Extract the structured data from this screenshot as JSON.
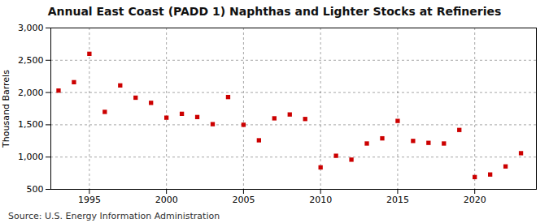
{
  "chart_data": {
    "type": "scatter",
    "title": "Annual East Coast (PADD 1) Naphthas and Lighter Stocks at Refineries",
    "ylabel": "Thousand Barrels",
    "source": "Source: U.S. Energy Information Administration",
    "x": [
      1993,
      1994,
      1995,
      1996,
      1997,
      1998,
      1999,
      2000,
      2001,
      2002,
      2003,
      2004,
      2005,
      2006,
      2007,
      2008,
      2009,
      2010,
      2011,
      2012,
      2013,
      2014,
      2015,
      2016,
      2017,
      2018,
      2019,
      2020,
      2021,
      2022,
      2023
    ],
    "values": [
      2030,
      2160,
      2600,
      1700,
      2110,
      1920,
      1840,
      1610,
      1670,
      1620,
      1510,
      1930,
      1500,
      1260,
      1600,
      1660,
      1590,
      840,
      1020,
      960,
      1210,
      1290,
      1560,
      1250,
      1220,
      1210,
      1420,
      690,
      730,
      855,
      1060
    ],
    "color": "#cc0000",
    "marker": "square",
    "xlim": [
      1992.5,
      2024
    ],
    "xticks": [
      1995,
      2000,
      2005,
      2010,
      2015,
      2020
    ],
    "ylim": [
      500,
      3000
    ],
    "yticks": [
      500,
      {
        "value": 1000,
        "label": "1,000"
      },
      {
        "value": 1500,
        "label": "1,500"
      },
      {
        "value": 2000,
        "label": "2,000"
      },
      {
        "value": 2500,
        "label": "2,500"
      },
      {
        "value": 3000,
        "label": "3,000"
      }
    ],
    "grid": true
  }
}
